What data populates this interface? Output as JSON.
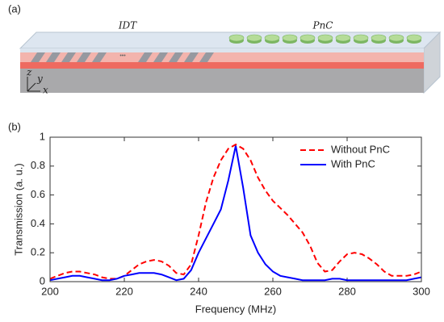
{
  "diagram": {
    "panel_label": "(a)",
    "idt_label": "IDT",
    "pnc_label": "PnC",
    "ellipsis": "•••",
    "axis_z": "z",
    "axis_y": "y",
    "axis_x": "x"
  },
  "chart_data": {
    "type": "line",
    "panel_label": "(b)",
    "x_label": "Frequency (MHz)",
    "y_label": "Transmission (a. u.)",
    "x": [
      200,
      202,
      204,
      206,
      208,
      210,
      212,
      214,
      216,
      218,
      220,
      222,
      224,
      226,
      228,
      230,
      232,
      234,
      236,
      238,
      240,
      242,
      244,
      246,
      248,
      250,
      252,
      254,
      256,
      258,
      260,
      262,
      264,
      266,
      268,
      270,
      272,
      274,
      276,
      278,
      280,
      282,
      284,
      286,
      288,
      290,
      292,
      294,
      296,
      298,
      300
    ],
    "series": [
      {
        "name": "Without PnC",
        "color": "#ff0000",
        "dash": true,
        "values": [
          0.02,
          0.04,
          0.06,
          0.07,
          0.07,
          0.06,
          0.05,
          0.03,
          0.02,
          0.02,
          0.04,
          0.08,
          0.12,
          0.14,
          0.15,
          0.14,
          0.11,
          0.06,
          0.05,
          0.12,
          0.32,
          0.55,
          0.72,
          0.84,
          0.92,
          0.95,
          0.92,
          0.84,
          0.72,
          0.63,
          0.56,
          0.51,
          0.46,
          0.4,
          0.34,
          0.25,
          0.13,
          0.07,
          0.08,
          0.14,
          0.19,
          0.2,
          0.19,
          0.16,
          0.12,
          0.07,
          0.04,
          0.04,
          0.04,
          0.05,
          0.07
        ]
      },
      {
        "name": "With PnC",
        "color": "#0000ff",
        "dash": false,
        "values": [
          0.01,
          0.02,
          0.03,
          0.04,
          0.04,
          0.03,
          0.02,
          0.01,
          0.01,
          0.02,
          0.04,
          0.05,
          0.06,
          0.06,
          0.06,
          0.05,
          0.03,
          0.01,
          0.02,
          0.08,
          0.2,
          0.3,
          0.4,
          0.5,
          0.7,
          0.94,
          0.65,
          0.32,
          0.2,
          0.12,
          0.07,
          0.04,
          0.03,
          0.02,
          0.01,
          0.01,
          0.01,
          0.01,
          0.02,
          0.02,
          0.01,
          0.01,
          0.01,
          0.01,
          0.01,
          0.01,
          0.01,
          0.01,
          0.01,
          0.02,
          0.03
        ]
      }
    ],
    "xlim": [
      200,
      300
    ],
    "ylim": [
      0,
      1
    ],
    "xticks": [
      200,
      220,
      240,
      260,
      280,
      300
    ],
    "yticks": [
      0,
      0.2,
      0.4,
      0.6,
      0.8,
      1
    ],
    "legend": "upper-right"
  }
}
